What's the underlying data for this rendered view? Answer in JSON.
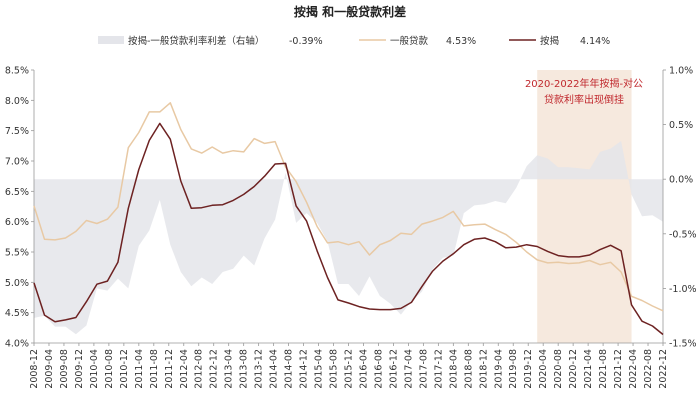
{
  "chart_data": {
    "type": "line",
    "title": "按揭 和一般贷款利差",
    "legend": [
      {
        "name": "按揭-一般贷款利率利差（右轴）",
        "value_label": "-0.39%",
        "kind": "area",
        "color": "#e4e5ea"
      },
      {
        "name": "一般贷款",
        "value_label": "4.53%",
        "kind": "line",
        "color": "#e8c9a4"
      },
      {
        "name": "按揭",
        "value_label": "4.14%",
        "kind": "line",
        "color": "#6d2222"
      }
    ],
    "annotation": {
      "text": [
        "2020-2022年年按揭-对公",
        "贷款利率出现倒挂"
      ],
      "color": "#c0282d",
      "shade_color": "#f6e9de",
      "x_start_index": 48,
      "x_end_index": 57
    },
    "y_left": {
      "min": 4.0,
      "max": 8.5,
      "ticks": [
        "4.0%",
        "4.5%",
        "5.0%",
        "5.5%",
        "6.0%",
        "6.5%",
        "7.0%",
        "7.5%",
        "8.0%",
        "8.5%"
      ]
    },
    "y_right": {
      "min": -1.5,
      "max": 1.0,
      "ticks": [
        "-1.5%",
        "-1.0%",
        "-0.5%",
        "0.0%",
        "0.5%",
        "1.0%"
      ]
    },
    "x_labels": [
      "2008-12",
      "2009-04",
      "2009-08",
      "2009-12",
      "2010-04",
      "2010-08",
      "2010-12",
      "2011-04",
      "2011-08",
      "2011-12",
      "2012-04",
      "2012-08",
      "2012-12",
      "2013-04",
      "2013-08",
      "2013-12",
      "2014-04",
      "2014-08",
      "2014-12",
      "2015-04",
      "2015-08",
      "2015-12",
      "2016-04",
      "2016-08",
      "2016-12",
      "2017-04",
      "2017-08",
      "2017-12",
      "2018-04",
      "2018-08",
      "2018-12",
      "2019-04",
      "2019-08",
      "2019-12",
      "2020-04",
      "2020-08",
      "2020-12",
      "2021-04",
      "2021-08",
      "2021-12",
      "2022-04",
      "2022-08",
      "2022-12"
    ],
    "series": [
      {
        "name": "按揭",
        "axis": "left",
        "color": "#6d2222",
        "values": [
          4.99,
          4.46,
          4.35,
          4.38,
          4.42,
          4.68,
          4.97,
          5.02,
          5.33,
          6.22,
          6.86,
          7.34,
          7.62,
          7.36,
          6.67,
          6.22,
          6.23,
          6.27,
          6.28,
          6.35,
          6.45,
          6.58,
          6.75,
          6.95,
          6.96,
          6.26,
          6.01,
          5.52,
          5.08,
          4.71,
          4.66,
          4.6,
          4.56,
          4.55,
          4.55,
          4.57,
          4.67,
          4.93,
          5.18,
          5.35,
          5.47,
          5.62,
          5.71,
          5.73,
          5.67,
          5.57,
          5.58,
          5.62,
          5.59,
          5.51,
          5.44,
          5.42,
          5.42,
          5.45,
          5.54,
          5.61,
          5.52,
          4.63,
          4.36,
          4.28,
          4.14
        ]
      },
      {
        "name": "一般贷款",
        "axis": "left",
        "color": "#e8c9a4",
        "values": [
          6.26,
          5.71,
          5.7,
          5.73,
          5.84,
          6.02,
          5.97,
          6.04,
          6.24,
          7.22,
          7.47,
          7.81,
          7.81,
          7.96,
          7.52,
          7.2,
          7.13,
          7.23,
          7.13,
          7.17,
          7.15,
          7.37,
          7.29,
          7.32,
          6.9,
          6.66,
          6.32,
          5.92,
          5.65,
          5.67,
          5.62,
          5.67,
          5.45,
          5.62,
          5.69,
          5.81,
          5.79,
          5.96,
          6.01,
          6.07,
          6.17,
          5.93,
          5.95,
          5.96,
          5.87,
          5.79,
          5.66,
          5.5,
          5.37,
          5.32,
          5.33,
          5.31,
          5.32,
          5.36,
          5.29,
          5.33,
          5.17,
          4.77,
          4.7,
          4.61,
          4.53
        ]
      },
      {
        "name": "按揭-一般贷款利率利差（右轴）",
        "axis": "right",
        "color": "#e4e5ea",
        "values": [
          -1.27,
          -1.25,
          -1.35,
          -1.35,
          -1.42,
          -1.34,
          -1.0,
          -1.02,
          -0.91,
          -1.0,
          -0.61,
          -0.47,
          -0.19,
          -0.6,
          -0.85,
          -0.98,
          -0.9,
          -0.96,
          -0.85,
          -0.82,
          -0.7,
          -0.79,
          -0.54,
          -0.37,
          0.06,
          -0.4,
          -0.31,
          -0.4,
          -0.57,
          -0.96,
          -0.96,
          -1.07,
          -0.89,
          -1.07,
          -1.14,
          -1.24,
          -1.12,
          -1.03,
          -0.83,
          -0.72,
          -0.7,
          -0.31,
          -0.24,
          -0.23,
          -0.2,
          -0.22,
          -0.08,
          0.12,
          0.22,
          0.19,
          0.11,
          0.11,
          0.1,
          0.09,
          0.25,
          0.28,
          0.35,
          -0.14,
          -0.34,
          -0.33,
          -0.39
        ]
      }
    ]
  }
}
